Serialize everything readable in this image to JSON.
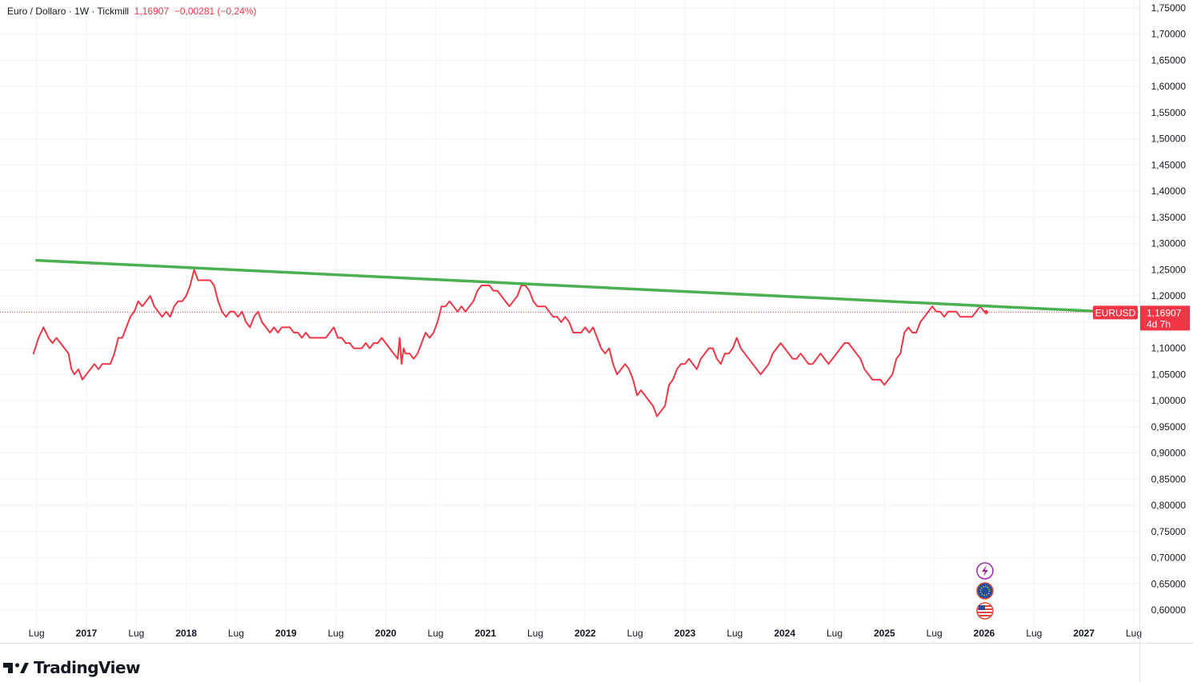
{
  "legend": {
    "symbol": "Euro / Dollaro",
    "interval": "1W",
    "broker": "Tickmill",
    "last": "1,16907",
    "change": "−0,00281 (−0,24%)",
    "sep": "·"
  },
  "price_tag": {
    "symbol": "EURUSD",
    "price": "1,16907",
    "countdown": "4d 7h"
  },
  "brand": {
    "name": "TradingView"
  },
  "colors": {
    "series": "#f23645",
    "trendline": "#4caf50",
    "grid": "#f0f3fa",
    "text": "#131722"
  },
  "event_icons": [
    "lightning-icon",
    "eu-flag-icon",
    "us-flag-icon"
  ],
  "chart_data": {
    "type": "line",
    "title": "Euro / Dollaro · 1W · Tickmill",
    "ylim": [
      0.58,
      1.76
    ],
    "y_ticks": [
      "1,75000",
      "1,70000",
      "1,65000",
      "1,60000",
      "1,55000",
      "1,50000",
      "1,45000",
      "1,40000",
      "1,35000",
      "1,30000",
      "1,25000",
      "1,20000",
      "1,15000",
      "1,10000",
      "1,05000",
      "1,00000",
      "0,95000",
      "0,90000",
      "0,85000",
      "0,80000",
      "0,75000",
      "0,70000",
      "0,65000",
      "0,60000"
    ],
    "y_tick_values": [
      1.75,
      1.7,
      1.65,
      1.6,
      1.55,
      1.5,
      1.45,
      1.4,
      1.35,
      1.3,
      1.25,
      1.2,
      1.15,
      1.1,
      1.05,
      1.0,
      0.95,
      0.9,
      0.85,
      0.8,
      0.75,
      0.7,
      0.65,
      0.6
    ],
    "x_ticks": [
      {
        "label": "Lug",
        "t": 2016.5,
        "year": false
      },
      {
        "label": "2017",
        "t": 2017.0,
        "year": true
      },
      {
        "label": "Lug",
        "t": 2017.5,
        "year": false
      },
      {
        "label": "2018",
        "t": 2018.0,
        "year": true
      },
      {
        "label": "Lug",
        "t": 2018.5,
        "year": false
      },
      {
        "label": "2019",
        "t": 2019.0,
        "year": true
      },
      {
        "label": "Lug",
        "t": 2019.5,
        "year": false
      },
      {
        "label": "2020",
        "t": 2020.0,
        "year": true
      },
      {
        "label": "Lug",
        "t": 2020.5,
        "year": false
      },
      {
        "label": "2021",
        "t": 2021.0,
        "year": true
      },
      {
        "label": "Lug",
        "t": 2021.5,
        "year": false
      },
      {
        "label": "2022",
        "t": 2022.0,
        "year": true
      },
      {
        "label": "Lug",
        "t": 2022.5,
        "year": false
      },
      {
        "label": "2023",
        "t": 2023.0,
        "year": true
      },
      {
        "label": "Lug",
        "t": 2023.5,
        "year": false
      },
      {
        "label": "2024",
        "t": 2024.0,
        "year": true
      },
      {
        "label": "Lug",
        "t": 2024.5,
        "year": false
      },
      {
        "label": "2025",
        "t": 2025.0,
        "year": true
      },
      {
        "label": "Lug",
        "t": 2025.5,
        "year": false
      },
      {
        "label": "2026",
        "t": 2026.0,
        "year": true
      },
      {
        "label": "Lug",
        "t": 2026.5,
        "year": false
      },
      {
        "label": "2027",
        "t": 2027.0,
        "year": true
      },
      {
        "label": "Lug",
        "t": 2027.5,
        "year": false
      }
    ],
    "xlim": [
      2016.47,
      2027.5
    ],
    "series": [
      {
        "color": "#f23645",
        "points": [
          [
            2016.47,
            1.09
          ],
          [
            2016.52,
            1.12
          ],
          [
            2016.57,
            1.14
          ],
          [
            2016.62,
            1.12
          ],
          [
            2016.66,
            1.11
          ],
          [
            2016.7,
            1.12
          ],
          [
            2016.74,
            1.11
          ],
          [
            2016.78,
            1.1
          ],
          [
            2016.82,
            1.09
          ],
          [
            2016.85,
            1.06
          ],
          [
            2016.88,
            1.05
          ],
          [
            2016.92,
            1.06
          ],
          [
            2016.96,
            1.04
          ],
          [
            2017.0,
            1.05
          ],
          [
            2017.04,
            1.06
          ],
          [
            2017.08,
            1.07
          ],
          [
            2017.12,
            1.06
          ],
          [
            2017.16,
            1.07
          ],
          [
            2017.2,
            1.07
          ],
          [
            2017.24,
            1.07
          ],
          [
            2017.28,
            1.09
          ],
          [
            2017.32,
            1.12
          ],
          [
            2017.36,
            1.12
          ],
          [
            2017.4,
            1.14
          ],
          [
            2017.44,
            1.16
          ],
          [
            2017.48,
            1.17
          ],
          [
            2017.52,
            1.19
          ],
          [
            2017.56,
            1.18
          ],
          [
            2017.6,
            1.19
          ],
          [
            2017.64,
            1.2
          ],
          [
            2017.68,
            1.18
          ],
          [
            2017.72,
            1.17
          ],
          [
            2017.76,
            1.16
          ],
          [
            2017.8,
            1.17
          ],
          [
            2017.84,
            1.16
          ],
          [
            2017.88,
            1.18
          ],
          [
            2017.92,
            1.19
          ],
          [
            2017.96,
            1.19
          ],
          [
            2018.0,
            1.2
          ],
          [
            2018.04,
            1.22
          ],
          [
            2018.08,
            1.25
          ],
          [
            2018.12,
            1.23
          ],
          [
            2018.16,
            1.23
          ],
          [
            2018.2,
            1.23
          ],
          [
            2018.24,
            1.23
          ],
          [
            2018.28,
            1.22
          ],
          [
            2018.32,
            1.19
          ],
          [
            2018.36,
            1.17
          ],
          [
            2018.4,
            1.16
          ],
          [
            2018.44,
            1.17
          ],
          [
            2018.48,
            1.17
          ],
          [
            2018.52,
            1.16
          ],
          [
            2018.56,
            1.17
          ],
          [
            2018.6,
            1.15
          ],
          [
            2018.64,
            1.14
          ],
          [
            2018.68,
            1.16
          ],
          [
            2018.72,
            1.17
          ],
          [
            2018.76,
            1.15
          ],
          [
            2018.8,
            1.14
          ],
          [
            2018.84,
            1.13
          ],
          [
            2018.88,
            1.14
          ],
          [
            2018.92,
            1.13
          ],
          [
            2018.96,
            1.14
          ],
          [
            2019.0,
            1.14
          ],
          [
            2019.04,
            1.14
          ],
          [
            2019.08,
            1.13
          ],
          [
            2019.12,
            1.13
          ],
          [
            2019.16,
            1.12
          ],
          [
            2019.2,
            1.13
          ],
          [
            2019.24,
            1.12
          ],
          [
            2019.28,
            1.12
          ],
          [
            2019.32,
            1.12
          ],
          [
            2019.36,
            1.12
          ],
          [
            2019.4,
            1.12
          ],
          [
            2019.44,
            1.13
          ],
          [
            2019.48,
            1.14
          ],
          [
            2019.52,
            1.12
          ],
          [
            2019.56,
            1.12
          ],
          [
            2019.6,
            1.11
          ],
          [
            2019.64,
            1.11
          ],
          [
            2019.68,
            1.1
          ],
          [
            2019.72,
            1.1
          ],
          [
            2019.76,
            1.1
          ],
          [
            2019.8,
            1.11
          ],
          [
            2019.84,
            1.1
          ],
          [
            2019.88,
            1.11
          ],
          [
            2019.92,
            1.11
          ],
          [
            2019.96,
            1.12
          ],
          [
            2020.0,
            1.11
          ],
          [
            2020.04,
            1.1
          ],
          [
            2020.08,
            1.09
          ],
          [
            2020.12,
            1.08
          ],
          [
            2020.14,
            1.12
          ],
          [
            2020.16,
            1.07
          ],
          [
            2020.18,
            1.1
          ],
          [
            2020.2,
            1.09
          ],
          [
            2020.24,
            1.09
          ],
          [
            2020.28,
            1.08
          ],
          [
            2020.32,
            1.09
          ],
          [
            2020.36,
            1.11
          ],
          [
            2020.4,
            1.13
          ],
          [
            2020.44,
            1.12
          ],
          [
            2020.48,
            1.13
          ],
          [
            2020.52,
            1.15
          ],
          [
            2020.56,
            1.18
          ],
          [
            2020.6,
            1.18
          ],
          [
            2020.64,
            1.19
          ],
          [
            2020.68,
            1.18
          ],
          [
            2020.72,
            1.17
          ],
          [
            2020.76,
            1.18
          ],
          [
            2020.8,
            1.17
          ],
          [
            2020.84,
            1.18
          ],
          [
            2020.88,
            1.19
          ],
          [
            2020.92,
            1.21
          ],
          [
            2020.96,
            1.22
          ],
          [
            2021.0,
            1.22
          ],
          [
            2021.04,
            1.22
          ],
          [
            2021.08,
            1.21
          ],
          [
            2021.12,
            1.21
          ],
          [
            2021.16,
            1.2
          ],
          [
            2021.2,
            1.19
          ],
          [
            2021.24,
            1.18
          ],
          [
            2021.28,
            1.19
          ],
          [
            2021.32,
            1.2
          ],
          [
            2021.36,
            1.22
          ],
          [
            2021.4,
            1.22
          ],
          [
            2021.44,
            1.21
          ],
          [
            2021.48,
            1.19
          ],
          [
            2021.52,
            1.18
          ],
          [
            2021.56,
            1.18
          ],
          [
            2021.6,
            1.18
          ],
          [
            2021.64,
            1.17
          ],
          [
            2021.68,
            1.16
          ],
          [
            2021.72,
            1.16
          ],
          [
            2021.76,
            1.15
          ],
          [
            2021.8,
            1.16
          ],
          [
            2021.84,
            1.15
          ],
          [
            2021.88,
            1.13
          ],
          [
            2021.92,
            1.13
          ],
          [
            2021.96,
            1.13
          ],
          [
            2022.0,
            1.14
          ],
          [
            2022.04,
            1.13
          ],
          [
            2022.08,
            1.14
          ],
          [
            2022.12,
            1.12
          ],
          [
            2022.16,
            1.1
          ],
          [
            2022.2,
            1.09
          ],
          [
            2022.24,
            1.1
          ],
          [
            2022.28,
            1.07
          ],
          [
            2022.32,
            1.05
          ],
          [
            2022.36,
            1.06
          ],
          [
            2022.4,
            1.07
          ],
          [
            2022.44,
            1.06
          ],
          [
            2022.48,
            1.04
          ],
          [
            2022.52,
            1.01
          ],
          [
            2022.56,
            1.02
          ],
          [
            2022.6,
            1.01
          ],
          [
            2022.64,
            1.0
          ],
          [
            2022.68,
            0.99
          ],
          [
            2022.72,
            0.97
          ],
          [
            2022.76,
            0.98
          ],
          [
            2022.8,
            0.99
          ],
          [
            2022.84,
            1.03
          ],
          [
            2022.88,
            1.04
          ],
          [
            2022.92,
            1.06
          ],
          [
            2022.96,
            1.07
          ],
          [
            2023.0,
            1.07
          ],
          [
            2023.04,
            1.08
          ],
          [
            2023.08,
            1.07
          ],
          [
            2023.12,
            1.06
          ],
          [
            2023.16,
            1.08
          ],
          [
            2023.2,
            1.09
          ],
          [
            2023.24,
            1.1
          ],
          [
            2023.28,
            1.1
          ],
          [
            2023.32,
            1.08
          ],
          [
            2023.36,
            1.07
          ],
          [
            2023.4,
            1.09
          ],
          [
            2023.44,
            1.09
          ],
          [
            2023.48,
            1.1
          ],
          [
            2023.52,
            1.12
          ],
          [
            2023.56,
            1.1
          ],
          [
            2023.6,
            1.09
          ],
          [
            2023.64,
            1.08
          ],
          [
            2023.68,
            1.07
          ],
          [
            2023.72,
            1.06
          ],
          [
            2023.76,
            1.05
          ],
          [
            2023.8,
            1.06
          ],
          [
            2023.84,
            1.07
          ],
          [
            2023.88,
            1.09
          ],
          [
            2023.92,
            1.1
          ],
          [
            2023.96,
            1.11
          ],
          [
            2024.0,
            1.1
          ],
          [
            2024.04,
            1.09
          ],
          [
            2024.08,
            1.08
          ],
          [
            2024.12,
            1.08
          ],
          [
            2024.16,
            1.09
          ],
          [
            2024.2,
            1.08
          ],
          [
            2024.24,
            1.07
          ],
          [
            2024.28,
            1.07
          ],
          [
            2024.32,
            1.08
          ],
          [
            2024.36,
            1.09
          ],
          [
            2024.4,
            1.08
          ],
          [
            2024.44,
            1.07
          ],
          [
            2024.48,
            1.08
          ],
          [
            2024.52,
            1.09
          ],
          [
            2024.56,
            1.1
          ],
          [
            2024.6,
            1.11
          ],
          [
            2024.64,
            1.11
          ],
          [
            2024.68,
            1.1
          ],
          [
            2024.72,
            1.09
          ],
          [
            2024.76,
            1.08
          ],
          [
            2024.8,
            1.06
          ],
          [
            2024.84,
            1.05
          ],
          [
            2024.88,
            1.04
          ],
          [
            2024.92,
            1.04
          ],
          [
            2024.96,
            1.04
          ],
          [
            2025.0,
            1.03
          ],
          [
            2025.04,
            1.04
          ],
          [
            2025.08,
            1.05
          ],
          [
            2025.12,
            1.08
          ],
          [
            2025.16,
            1.09
          ],
          [
            2025.2,
            1.13
          ],
          [
            2025.24,
            1.14
          ],
          [
            2025.28,
            1.13
          ],
          [
            2025.32,
            1.13
          ],
          [
            2025.36,
            1.15
          ],
          [
            2025.4,
            1.16
          ],
          [
            2025.44,
            1.17
          ],
          [
            2025.48,
            1.18
          ],
          [
            2025.52,
            1.17
          ],
          [
            2025.56,
            1.17
          ],
          [
            2025.6,
            1.16
          ],
          [
            2025.64,
            1.17
          ],
          [
            2025.68,
            1.17
          ],
          [
            2025.72,
            1.17
          ],
          [
            2025.76,
            1.16
          ],
          [
            2025.8,
            1.16
          ],
          [
            2025.84,
            1.16
          ],
          [
            2025.88,
            1.16
          ],
          [
            2025.92,
            1.17
          ],
          [
            2025.96,
            1.18
          ],
          [
            2026.0,
            1.17
          ],
          [
            2026.02,
            1.169
          ]
        ]
      },
      {
        "color": "#4caf50",
        "points": [
          [
            2016.5,
            1.268
          ],
          [
            2027.3,
            1.169
          ]
        ]
      }
    ],
    "last_value": 1.16907,
    "last_label": "1,16907"
  }
}
